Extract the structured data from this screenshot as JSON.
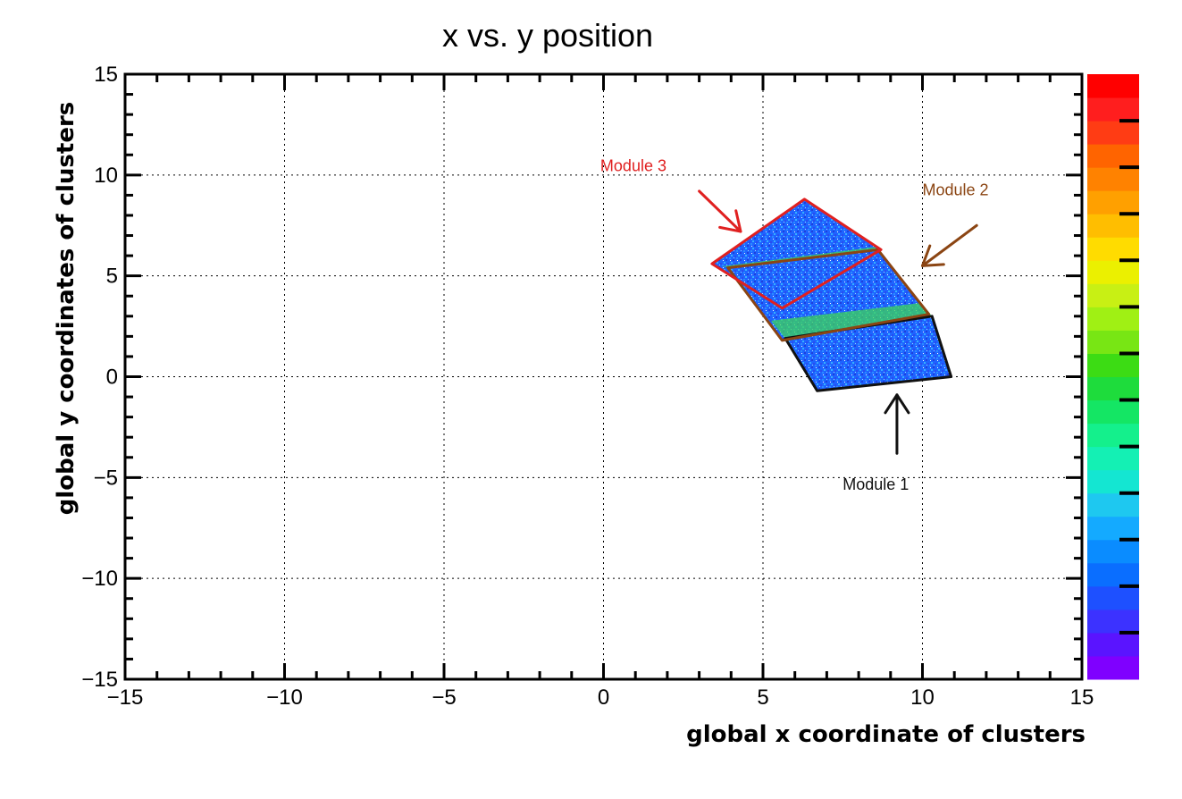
{
  "chart_data": {
    "type": "heatmap",
    "title": "x vs. y position",
    "xlabel": "global x coordinate of clusters",
    "ylabel": "global y coordinates of clusters",
    "xlim": [
      -15,
      15
    ],
    "ylim": [
      -15,
      15
    ],
    "x_ticks": [
      -15,
      -10,
      -5,
      0,
      5,
      10,
      15
    ],
    "y_ticks": [
      -15,
      -10,
      -5,
      0,
      5,
      10,
      15
    ],
    "x_tick_labels": [
      "−15",
      "−10",
      "−5",
      "0",
      "5",
      "10",
      "15"
    ],
    "y_tick_labels": [
      "−15",
      "−10",
      "−5",
      "0",
      "5",
      "10",
      "15"
    ],
    "grid": true,
    "colorbar": {
      "colors": [
        "#7f00ff",
        "#5a14ff",
        "#3c32ff",
        "#1e50ff",
        "#0a6eff",
        "#0a8cff",
        "#14aaff",
        "#1ec8f0",
        "#14e6d2",
        "#14f0b4",
        "#14f08c",
        "#14e664",
        "#1edc3c",
        "#3cdc14",
        "#78e614",
        "#a0f014",
        "#c8f014",
        "#ebf000",
        "#ffdc00",
        "#ffbe00",
        "#ffa000",
        "#ff8200",
        "#ff6400",
        "#ff3c14",
        "#ff1e1e",
        "#ff0000"
      ]
    },
    "modules": [
      {
        "name": "Module 1",
        "outline_color": "#111111",
        "corners": [
          [
            6.7,
            -0.7
          ],
          [
            10.9,
            0.0
          ],
          [
            10.3,
            3.0
          ],
          [
            5.7,
            1.9
          ]
        ],
        "label_pos": [
          7.5,
          -5.6
        ],
        "arrow_from": [
          9.2,
          -3.8
        ],
        "arrow_to": [
          9.2,
          -0.9
        ]
      },
      {
        "name": "Module 2",
        "outline_color": "#8b4513",
        "corners": [
          [
            5.6,
            1.8
          ],
          [
            10.2,
            3.1
          ],
          [
            8.6,
            6.3
          ],
          [
            3.9,
            5.4
          ]
        ],
        "label_pos": [
          10.0,
          9.0
        ],
        "arrow_from": [
          11.7,
          7.5
        ],
        "arrow_to": [
          10.0,
          5.5
        ]
      },
      {
        "name": "Module 3",
        "outline_color": "#e02020",
        "corners": [
          [
            3.4,
            5.6
          ],
          [
            6.3,
            8.8
          ],
          [
            8.7,
            6.3
          ],
          [
            5.6,
            3.4
          ]
        ],
        "label_pos": [
          -0.1,
          10.2
        ],
        "arrow_from": [
          3.0,
          9.2
        ],
        "arrow_to": [
          4.3,
          7.2
        ]
      }
    ]
  }
}
